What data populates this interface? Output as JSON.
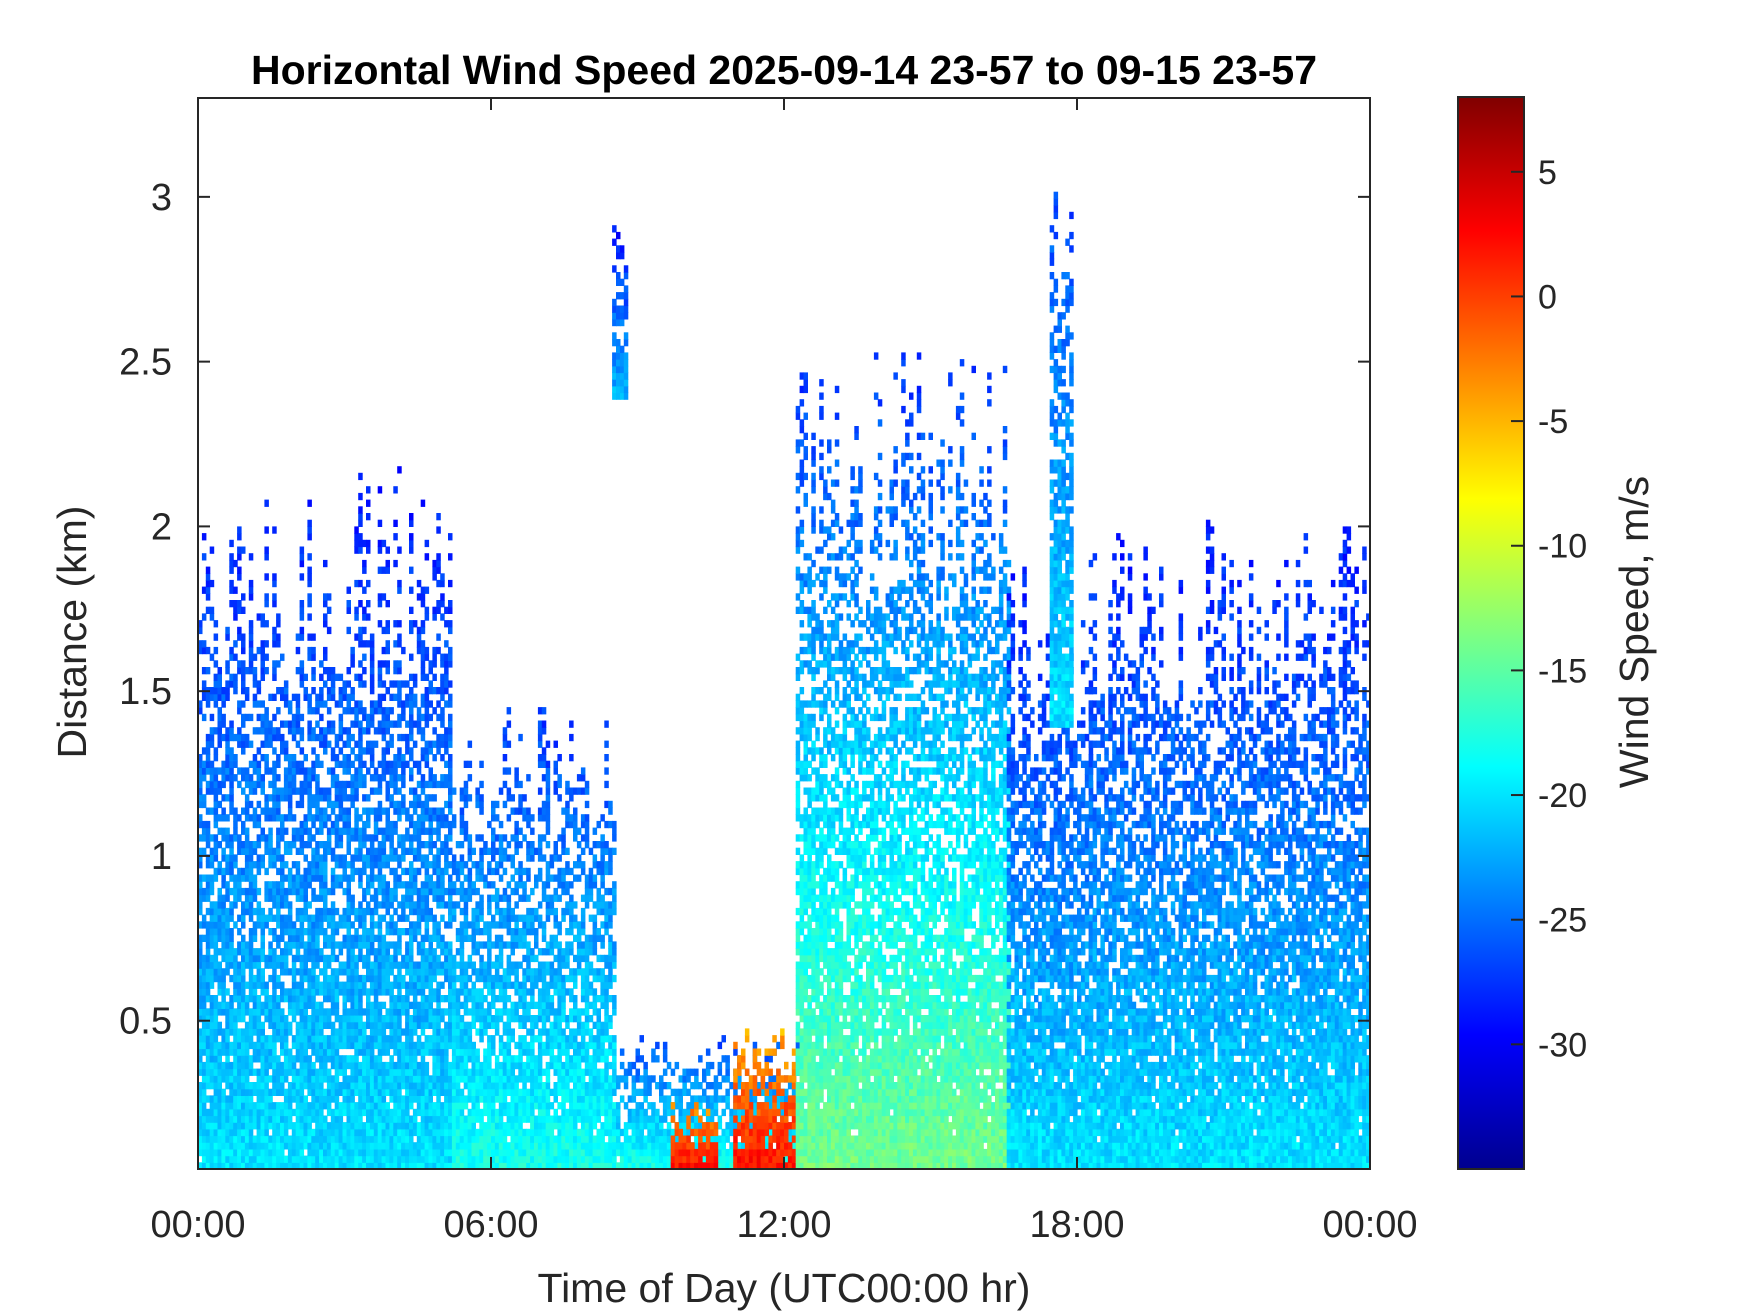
{
  "chart_data": {
    "type": "heatmap",
    "title": "Horizontal Wind Speed 2025-09-14 23-57 to 09-15 23-57",
    "xlabel": "Time of Day (UTC00:00 hr)",
    "ylabel": "Distance (km)",
    "colorbar_label": "Wind Speed, m/s",
    "colormap": "jet",
    "x_ticks": [
      {
        "value": 0,
        "label": "00:00"
      },
      {
        "value": 6,
        "label": "06:00"
      },
      {
        "value": 12,
        "label": "12:00"
      },
      {
        "value": 18,
        "label": "18:00"
      },
      {
        "value": 24,
        "label": "00:00"
      }
    ],
    "y_ticks": [
      {
        "value": 0.5,
        "label": "0.5"
      },
      {
        "value": 1,
        "label": "1"
      },
      {
        "value": 1.5,
        "label": "1.5"
      },
      {
        "value": 2,
        "label": "2"
      },
      {
        "value": 2.5,
        "label": "2.5"
      },
      {
        "value": 3,
        "label": "3"
      }
    ],
    "colorbar_ticks": [
      {
        "value": 5,
        "label": "5"
      },
      {
        "value": 0,
        "label": "0"
      },
      {
        "value": -5,
        "label": "-5"
      },
      {
        "value": -10,
        "label": "-10"
      },
      {
        "value": -15,
        "label": "-15"
      },
      {
        "value": -20,
        "label": "-20"
      },
      {
        "value": -25,
        "label": "-25"
      },
      {
        "value": -30,
        "label": "-30"
      }
    ],
    "xlim": [
      0,
      24
    ],
    "ylim": [
      0.05,
      3.3
    ],
    "clim": [
      -35,
      8
    ],
    "grid": false,
    "regions": [
      {
        "time_start": 0.0,
        "time_end": 5.2,
        "height_max_km": 2.2,
        "speed_low_m_s": -20,
        "speed_high_m_s": -29,
        "pattern": "sparse columns, denser below 1 km"
      },
      {
        "time_start": 5.2,
        "time_end": 8.5,
        "height_max_km": 1.5,
        "speed_low_m_s": -18,
        "speed_high_m_s": -28,
        "pattern": "sparse columns, dense below 0.5 km"
      },
      {
        "time_start": 8.5,
        "time_end": 12.3,
        "height_max_km": 0.45,
        "speed_low_m_s": -18,
        "speed_high_m_s": -27,
        "pattern": "shallow layer"
      },
      {
        "time_start": 9.7,
        "time_end": 10.6,
        "height_max_km": 0.25,
        "speed_low_m_s": 2,
        "speed_high_m_s": -4,
        "pattern": "red core near surface"
      },
      {
        "time_start": 11.0,
        "time_end": 12.2,
        "height_max_km": 0.47,
        "speed_low_m_s": 2,
        "speed_high_m_s": -5,
        "pattern": "red core near 0.4 km"
      },
      {
        "time_start": 12.3,
        "time_end": 16.6,
        "height_max_km": 2.55,
        "speed_low_m_s": -14,
        "speed_high_m_s": -28,
        "pattern": "dense dome"
      },
      {
        "time_start": 16.6,
        "time_end": 18.3,
        "height_max_km": 1.9,
        "speed_low_m_s": -20,
        "speed_high_m_s": -29,
        "pattern": "gap 0.5-1.4 km"
      },
      {
        "time_start": 18.3,
        "time_end": 24.0,
        "height_max_km": 2.05,
        "speed_low_m_s": -20,
        "speed_high_m_s": -29,
        "pattern": "streaks and dense lower layer"
      },
      {
        "time_start": 8.5,
        "time_end": 8.8,
        "height_min_km": 2.4,
        "height_max_km": 2.95,
        "speed_low_m_s": -22,
        "speed_high_m_s": -30,
        "pattern": "isolated column"
      },
      {
        "time_start": 17.5,
        "time_end": 17.9,
        "height_min_km": 1.4,
        "height_max_km": 3.3,
        "speed_low_m_s": -20,
        "speed_high_m_s": -28,
        "pattern": "tall streak"
      }
    ]
  }
}
